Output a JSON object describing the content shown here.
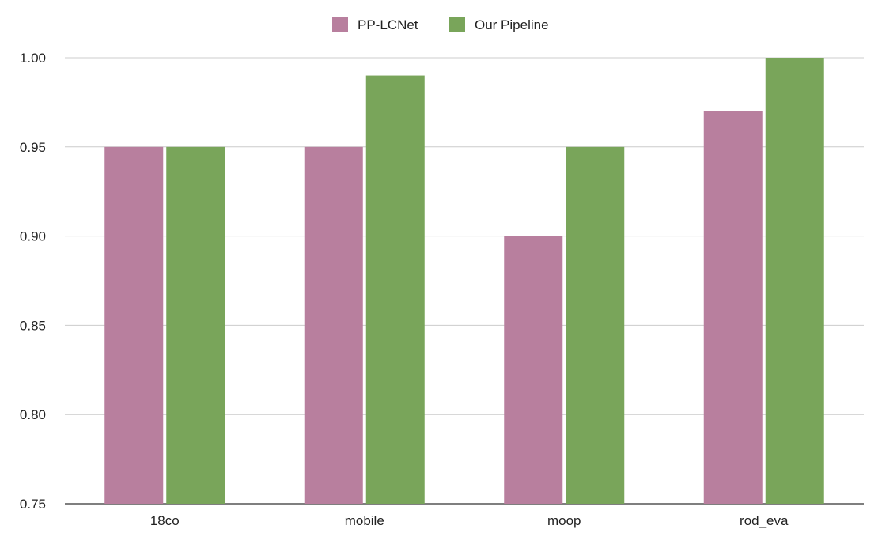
{
  "chart_data": {
    "type": "bar",
    "title": "",
    "xlabel": "",
    "ylabel": "",
    "categories": [
      "18co",
      "mobile",
      "moop",
      "rod_eva"
    ],
    "series": [
      {
        "name": "PP-LCNet",
        "color": "#b87f9e",
        "values": [
          0.95,
          0.95,
          0.9,
          0.97
        ]
      },
      {
        "name": "Our Pipeline",
        "color": "#79a55a",
        "values": [
          0.95,
          0.99,
          0.95,
          1.0
        ]
      }
    ],
    "ylim": [
      0.75,
      1.0
    ],
    "yticks": [
      "0.75",
      "0.80",
      "0.85",
      "0.90",
      "0.95",
      "1.00"
    ],
    "grid": true,
    "legend_position": "top-center"
  }
}
